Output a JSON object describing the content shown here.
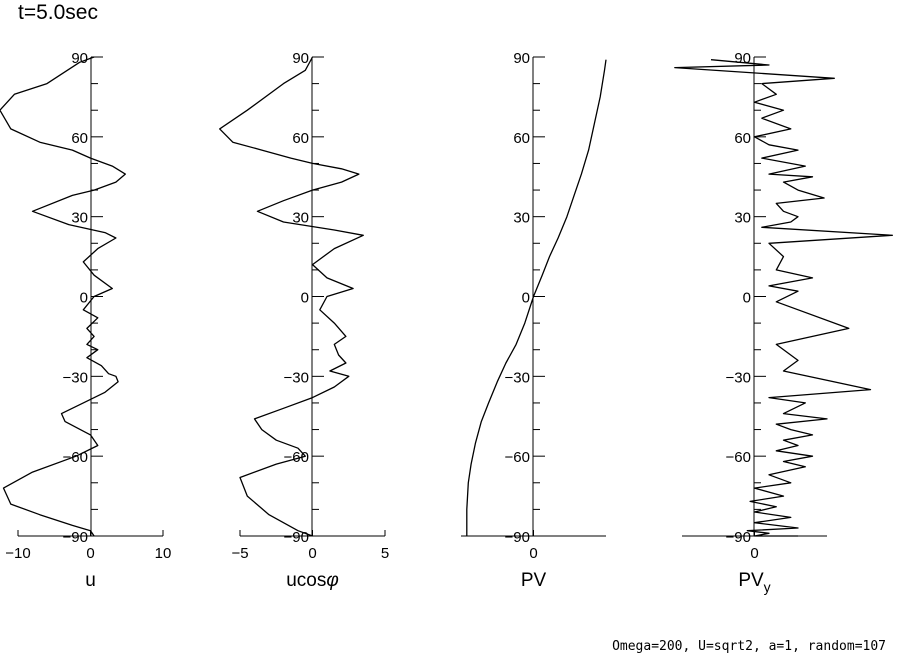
{
  "title": "t=5.0sec",
  "footer": "Omega=200, U=sqrt2, a=1, random=107",
  "chart_data": [
    {
      "type": "line",
      "xlabel": "u",
      "xlabel_sub": "",
      "xlim": [
        -10,
        10
      ],
      "xticks": [
        -10,
        0,
        10
      ],
      "ylim": [
        -90,
        90
      ],
      "yticks": [
        -90,
        -60,
        -30,
        0,
        30,
        60,
        90
      ],
      "series": [
        {
          "x": [
            0.5,
            -1.5,
            -6.0,
            -10.5,
            -12.5,
            -11.0,
            -7.0,
            -2.5,
            0.0,
            3.0,
            4.8,
            3.5,
            0.5,
            -2.5,
            -8.0,
            -3.0,
            2.0,
            3.5,
            1.0,
            -1.0,
            0.5,
            3.0,
            0.5,
            -1.0,
            1.0,
            -0.5,
            0.5,
            -0.5,
            1.0,
            -0.5,
            1.5,
            2.5,
            3.5,
            3.8,
            2.0,
            -1.0,
            -4.0,
            -3.5,
            0.0,
            1.0,
            -2.0,
            -8.0,
            -12.0,
            -11.0,
            -7.0,
            -2.5,
            0.0,
            0.5
          ],
          "y": [
            90,
            88,
            80,
            76,
            70,
            63,
            58,
            55,
            52,
            49,
            46,
            43,
            40,
            38,
            32,
            27,
            24,
            22,
            18,
            13,
            8,
            3,
            0,
            -5,
            -8,
            -12,
            -15,
            -18,
            -20,
            -23,
            -26,
            -29,
            -30,
            -32,
            -36,
            -40,
            -44,
            -47,
            -52,
            -56,
            -60,
            -66,
            -72,
            -78,
            -82,
            -86,
            -88,
            -90
          ]
        }
      ]
    },
    {
      "type": "line",
      "xlabel": "ucos",
      "xlabel_sub": "φ",
      "xlim": [
        -5,
        5
      ],
      "xticks": [
        -5,
        0,
        5
      ],
      "ylim": [
        -90,
        90
      ],
      "yticks": [
        -90,
        -60,
        -30,
        0,
        30,
        60,
        90
      ],
      "series": [
        {
          "x": [
            0.0,
            -0.5,
            -2.0,
            -4.5,
            -6.4,
            -5.5,
            -3.5,
            -1.5,
            0.0,
            2.0,
            3.2,
            2.0,
            0.0,
            -2.0,
            -3.8,
            -2.0,
            1.5,
            3.5,
            1.5,
            0.0,
            1.0,
            2.8,
            1.0,
            0.5,
            1.5,
            2.3,
            1.5,
            1.8,
            2.3,
            1.2,
            2.5,
            1.5,
            0.0,
            -2.0,
            -4.0,
            -3.5,
            -2.5,
            -1.0,
            -0.5,
            -2.5,
            -5.0,
            -4.5,
            -3.0,
            -1.0,
            0.0
          ],
          "y": [
            90,
            85,
            80,
            70,
            63,
            58,
            55,
            52,
            50,
            48,
            46,
            43,
            40,
            36,
            32,
            28,
            25,
            23,
            18,
            12,
            7,
            3,
            0,
            -5,
            -10,
            -15,
            -18,
            -22,
            -25,
            -28,
            -30,
            -34,
            -38,
            -42,
            -46,
            -50,
            -54,
            -57,
            -60,
            -63,
            -68,
            -75,
            -82,
            -88,
            -90
          ]
        }
      ]
    },
    {
      "type": "line",
      "xlabel": "PV",
      "xlabel_sub": "",
      "xlim": [
        -5,
        5
      ],
      "xticks": [
        0
      ],
      "ylim": [
        -90,
        90
      ],
      "yticks": [
        -90,
        -60,
        -30,
        0,
        30,
        60,
        90
      ],
      "series": [
        {
          "x": [
            -4.6,
            -4.6,
            -4.5,
            -4.3,
            -4.0,
            -3.6,
            -3.1,
            -2.5,
            -1.9,
            -1.2,
            -0.6,
            0.0,
            0.6,
            1.1,
            1.7,
            2.3,
            2.8,
            3.3,
            3.8,
            4.2,
            4.6,
            4.9,
            5.0
          ],
          "y": [
            -90,
            -80,
            -70,
            -63,
            -55,
            -47,
            -40,
            -32,
            -25,
            -18,
            -10,
            0,
            8,
            15,
            22,
            30,
            38,
            46,
            55,
            65,
            75,
            85,
            89
          ]
        }
      ]
    },
    {
      "type": "line",
      "xlabel": "PV",
      "xlabel_sub": "y",
      "xlim": [
        -5,
        5
      ],
      "xticks": [
        0
      ],
      "ylim": [
        -90,
        90
      ],
      "yticks": [
        -90,
        -60,
        -30,
        0,
        30,
        60,
        90
      ],
      "series": [
        {
          "x": [
            -3.0,
            1.0,
            -5.5,
            5.5,
            0.5,
            1.5,
            0.0,
            2.0,
            0.5,
            2.5,
            0.0,
            1.0,
            3.0,
            0.5,
            3.5,
            1.0,
            4.0,
            2.0,
            3.0,
            4.8,
            1.5,
            2.0,
            3.0,
            2.5,
            0.5,
            9.5,
            1.0,
            2.0,
            1.5,
            4.0,
            1.0,
            3.0,
            1.5,
            6.5,
            1.5,
            3.0,
            2.0,
            8.0,
            1.0,
            3.5,
            2.0,
            5.0,
            1.5,
            2.5,
            4.0,
            2.0,
            3.0,
            1.5,
            4.0,
            2.0,
            3.5,
            1.0,
            2.5,
            0.0,
            2.0,
            -0.3,
            1.5,
            0.0,
            2.5,
            0.0,
            3.0,
            -0.5,
            1.0,
            0.0,
            3.0
          ],
          "y": [
            89,
            87,
            86,
            82,
            80,
            76,
            73,
            70,
            67,
            63,
            60,
            57,
            55,
            52,
            49,
            46,
            45,
            43,
            40,
            37,
            35,
            32,
            30,
            28,
            26,
            23,
            20,
            15,
            10,
            7,
            4,
            2,
            -2,
            -12,
            -18,
            -24,
            -28,
            -35,
            -38,
            -40,
            -44,
            -46,
            -48,
            -50,
            -52,
            -54,
            -56,
            -58,
            -60,
            -62,
            -64,
            -67,
            -70,
            -72,
            -75,
            -77,
            -79,
            -81,
            -83,
            -85,
            -87,
            -88,
            -89,
            -90,
            -90
          ]
        }
      ]
    }
  ]
}
